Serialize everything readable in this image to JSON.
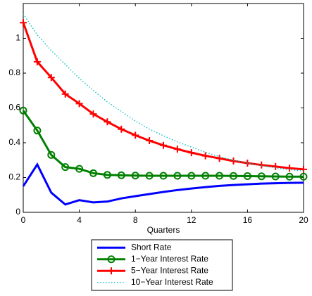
{
  "chart_data": {
    "type": "line",
    "x_label": "Quarters",
    "x": [
      0,
      1,
      2,
      3,
      4,
      5,
      6,
      7,
      8,
      9,
      10,
      11,
      12,
      13,
      14,
      15,
      16,
      17,
      18,
      19,
      20
    ],
    "xlim": [
      0,
      20
    ],
    "xticks": [
      0,
      4,
      8,
      12,
      16,
      20
    ],
    "ylim": [
      0,
      1.2
    ],
    "yticks": [
      0,
      0.2,
      0.4,
      0.6,
      0.8,
      1
    ],
    "legend": "below",
    "series": [
      {
        "name": "Short Rate",
        "color": "#0000ff",
        "marker": "none",
        "dash": "solid",
        "values": [
          0.15,
          0.275,
          0.113,
          0.045,
          0.07,
          0.057,
          0.062,
          0.08,
          0.093,
          0.105,
          0.117,
          0.128,
          0.137,
          0.145,
          0.152,
          0.157,
          0.161,
          0.165,
          0.167,
          0.169,
          0.17
        ]
      },
      {
        "name": "1−Year Interest Rate",
        "color": "#008000",
        "marker": "circle",
        "dash": "solid",
        "values": [
          0.585,
          0.47,
          0.33,
          0.26,
          0.25,
          0.225,
          0.215,
          0.213,
          0.211,
          0.21,
          0.21,
          0.21,
          0.21,
          0.21,
          0.21,
          0.209,
          0.208,
          0.207,
          0.206,
          0.205,
          0.205
        ]
      },
      {
        "name": "5−Year Interest Rate",
        "color": "#ff0000",
        "marker": "plus",
        "dash": "solid",
        "values": [
          1.09,
          0.865,
          0.775,
          0.68,
          0.625,
          0.565,
          0.52,
          0.478,
          0.443,
          0.412,
          0.385,
          0.363,
          0.343,
          0.325,
          0.31,
          0.295,
          0.283,
          0.272,
          0.263,
          0.254,
          0.247
        ]
      },
      {
        "name": "10−Year Interest Rate",
        "color": "#00bfbf",
        "marker": "none",
        "dash": "dotted",
        "values": [
          1.14,
          1.02,
          0.93,
          0.85,
          0.77,
          0.7,
          0.635,
          0.58,
          0.525,
          0.478,
          0.44,
          0.405,
          0.375,
          0.345,
          0.32,
          0.3,
          0.283,
          0.268,
          0.255,
          0.245,
          0.237
        ]
      }
    ]
  }
}
